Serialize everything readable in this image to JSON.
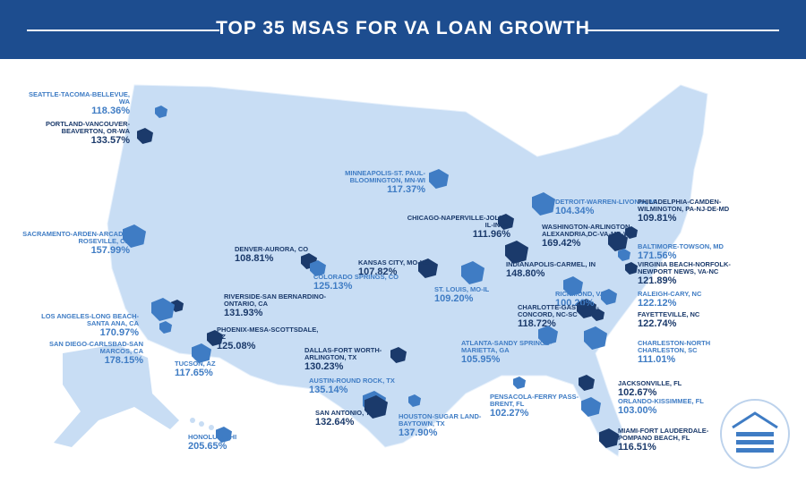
{
  "header": {
    "title": "TOP 35 MSAS FOR VA LOAN GROWTH"
  },
  "msas": [
    {
      "name": "SEATTLE-TACOMA-BELLEVUE, WA",
      "growth": "118.36%"
    },
    {
      "name": "PORTLAND-VANCOUVER-BEAVERTON, OR-WA",
      "growth": "133.57%"
    },
    {
      "name": "MINNEAPOLIS-ST. PAUL-BLOOMINGTON, MN-WI",
      "growth": "117.37%"
    },
    {
      "name": "DETROIT-WARREN-LIVONIA, MI",
      "growth": "104.34%"
    },
    {
      "name": "PHILADELPHIA-CAMDEN-WILMINGTON, PA-NJ-DE-MD",
      "growth": "109.81%"
    },
    {
      "name": "CHICAGO-NAPERVILLE-JOLIET, IL-IN-WI",
      "growth": "111.96%"
    },
    {
      "name": "WASHINGTON-ARLINGTON-ALEXANDRIA,DC-VA-MD-WV",
      "growth": "169.42%"
    },
    {
      "name": "SACRAMENTO-ARDEN-ARCADE-ROSEVILLE, CA",
      "growth": "157.99%"
    },
    {
      "name": "BALTIMORE-TOWSON, MD",
      "growth": "171.56%"
    },
    {
      "name": "DENVER-AURORA, CO",
      "growth": "108.81%"
    },
    {
      "name": "KANSAS CITY, MO-KS",
      "growth": "107.82%"
    },
    {
      "name": "INDIANAPOLIS-CARMEL, IN",
      "growth": "148.80%"
    },
    {
      "name": "VIRGINIA BEACH-NORFOLK-NEWPORT NEWS, VA-NC",
      "growth": "121.89%"
    },
    {
      "name": "COLORADO SPRINGS, CO",
      "growth": "125.13%"
    },
    {
      "name": "RICHMOND, VA",
      "growth": "100.20%"
    },
    {
      "name": "ST. LOUIS, MO-IL",
      "growth": "109.20%"
    },
    {
      "name": "RIVERSIDE-SAN BERNARDINO-ONTARIO, CA",
      "growth": "131.93%"
    },
    {
      "name": "RALEIGH-CARY, NC",
      "growth": "122.12%"
    },
    {
      "name": "CHARLOTTE-GASTONIA-CONCORD, NC-SC",
      "growth": "118.72%"
    },
    {
      "name": "LOS ANGELES-LONG BEACH-SANTA ANA, CA",
      "growth": "170.97%"
    },
    {
      "name": "FAYETTEVILLE, NC",
      "growth": "122.74%"
    },
    {
      "name": "PHOENIX-MESA-SCOTTSDALE, AZ",
      "growth": "125.08%"
    },
    {
      "name": "ATLANTA-SANDY SPRINGS-MARIETTA, GA",
      "growth": "105.95%"
    },
    {
      "name": "CHARLESTON-NORTH CHARLESTON, SC",
      "growth": "111.01%"
    },
    {
      "name": "SAN DIEGO-CARLSBAD-SAN MARCOS, CA",
      "growth": "178.15%"
    },
    {
      "name": "DALLAS-FORT WORTH-ARLINGTON, TX",
      "growth": "130.23%"
    },
    {
      "name": "TUCSON, AZ",
      "growth": "117.65%"
    },
    {
      "name": "AUSTIN-ROUND ROCK, TX",
      "growth": "135.14%"
    },
    {
      "name": "PENSACOLA-FERRY PASS-BRENT, FL",
      "growth": "102.27%"
    },
    {
      "name": "JACKSONVILLE, FL",
      "growth": "102.67%"
    },
    {
      "name": "ORLANDO-KISSIMMEE, FL",
      "growth": "103.00%"
    },
    {
      "name": "SAN ANTONIO, TX",
      "growth": "132.64%"
    },
    {
      "name": "HOUSTON-SUGAR LAND-BAYTOWN, TX",
      "growth": "137.90%"
    },
    {
      "name": "HONOLULU, HI",
      "growth": "205.65%"
    },
    {
      "name": "MIAMI-FORT LAUDERDALE-POMPANO BEACH, FL",
      "growth": "116.51%"
    }
  ]
}
